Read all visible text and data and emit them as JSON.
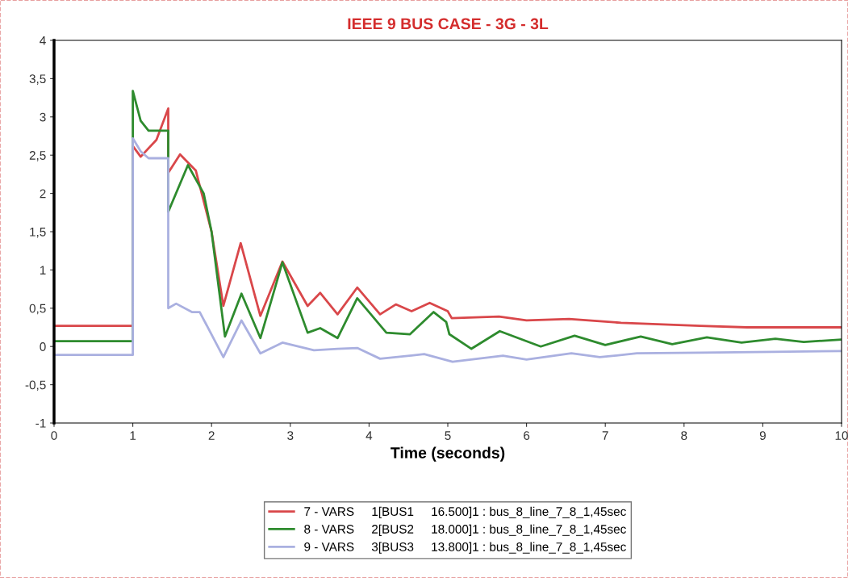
{
  "chart_data": {
    "type": "line",
    "title": "IEEE 9 BUS CASE - 3G - 3L",
    "xlabel": "Time (seconds)",
    "xlim": [
      0,
      10
    ],
    "xticks": [
      0,
      1,
      2,
      3,
      4,
      5,
      6,
      7,
      8,
      9,
      10
    ],
    "ylim": [
      -1,
      4
    ],
    "yticks": [
      {
        "value": -1,
        "label": "-1"
      },
      {
        "value": -0.5,
        "label": "-0,5"
      },
      {
        "value": 0,
        "label": "0"
      },
      {
        "value": 0.5,
        "label": "0,5"
      },
      {
        "value": 1,
        "label": "1"
      },
      {
        "value": 1.5,
        "label": "1,5"
      },
      {
        "value": 2,
        "label": "2"
      },
      {
        "value": 2.5,
        "label": "2,5"
      },
      {
        "value": 3,
        "label": "3"
      },
      {
        "value": 3.5,
        "label": "3,5"
      },
      {
        "value": 4,
        "label": "4"
      }
    ],
    "grid": false,
    "legend": "bottom",
    "marker": "none",
    "series": [
      {
        "name": "7 - VARS     1[BUS1     16.500]1 : bus_8_line_7_8_1,45sec",
        "color": "#d9474a",
        "line_style": "solid",
        "x": [
          0,
          1,
          1,
          1.1,
          1.3,
          1.45,
          1.45,
          1.6,
          1.8,
          2.0,
          2.15,
          2.37,
          2.62,
          2.9,
          3.22,
          3.38,
          3.6,
          3.85,
          4.14,
          4.34,
          4.54,
          4.77,
          5.0,
          5.05,
          5.65,
          6.0,
          6.54,
          7.2,
          8.2,
          8.8,
          10
        ],
        "values": [
          0.27,
          0.27,
          2.62,
          2.48,
          2.7,
          3.11,
          2.27,
          2.51,
          2.3,
          1.5,
          0.53,
          1.35,
          0.4,
          1.11,
          0.53,
          0.7,
          0.42,
          0.77,
          0.42,
          0.55,
          0.46,
          0.57,
          0.46,
          0.37,
          0.39,
          0.34,
          0.36,
          0.31,
          0.27,
          0.25,
          0.25
        ]
      },
      {
        "name": "8 - VARS     2[BUS2     18.000]1 : bus_8_line_7_8_1,45sec",
        "color": "#2e8b2e",
        "line_style": "solid",
        "x": [
          0,
          1,
          1,
          1.1,
          1.2,
          1.45,
          1.45,
          1.7,
          1.9,
          2.0,
          2.17,
          2.38,
          2.62,
          2.9,
          3.22,
          3.38,
          3.6,
          3.85,
          4.22,
          4.52,
          4.82,
          4.98,
          5.02,
          5.3,
          5.66,
          6.18,
          6.61,
          7.0,
          7.45,
          7.85,
          8.29,
          8.73,
          9.16,
          9.52,
          10
        ],
        "values": [
          0.07,
          0.07,
          3.34,
          2.95,
          2.82,
          2.82,
          1.76,
          2.37,
          2.0,
          1.5,
          0.13,
          0.69,
          0.11,
          1.1,
          0.18,
          0.24,
          0.11,
          0.63,
          0.18,
          0.16,
          0.45,
          0.32,
          0.16,
          -0.03,
          0.2,
          0.0,
          0.14,
          0.02,
          0.13,
          0.03,
          0.12,
          0.05,
          0.1,
          0.06,
          0.09
        ]
      },
      {
        "name": "9 - VARS     3[BUS3     13.800]1 : bus_8_line_7_8_1,45sec",
        "color": "#aab0e0",
        "line_style": "solid",
        "x": [
          0,
          1,
          1,
          1.1,
          1.2,
          1.45,
          1.45,
          1.55,
          1.75,
          1.85,
          2.15,
          2.38,
          2.62,
          2.9,
          3.3,
          3.6,
          3.85,
          4.14,
          4.7,
          5.06,
          5.7,
          6.0,
          6.57,
          6.93,
          7.4,
          8.2,
          9.12,
          10
        ],
        "values": [
          -0.11,
          -0.11,
          2.72,
          2.55,
          2.46,
          2.46,
          0.5,
          0.56,
          0.45,
          0.45,
          -0.14,
          0.34,
          -0.09,
          0.05,
          -0.05,
          -0.03,
          -0.02,
          -0.16,
          -0.1,
          -0.2,
          -0.12,
          -0.17,
          -0.09,
          -0.14,
          -0.09,
          -0.08,
          -0.07,
          -0.06
        ]
      }
    ]
  }
}
